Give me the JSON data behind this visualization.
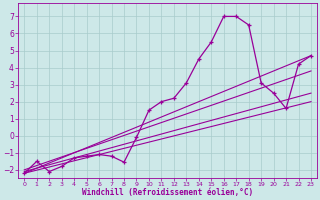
{
  "xlabel": "Windchill (Refroidissement éolien,°C)",
  "bg_color": "#cde8e8",
  "line_color": "#990099",
  "grid_color": "#a8cccc",
  "xlim": [
    -0.5,
    23.5
  ],
  "ylim": [
    -2.5,
    7.8
  ],
  "xticks": [
    0,
    1,
    2,
    3,
    4,
    5,
    6,
    7,
    8,
    9,
    10,
    11,
    12,
    13,
    14,
    15,
    16,
    17,
    18,
    19,
    20,
    21,
    22,
    23
  ],
  "yticks": [
    -2,
    -1,
    0,
    1,
    2,
    3,
    4,
    5,
    6,
    7
  ],
  "main_x": [
    0,
    1,
    2,
    3,
    4,
    5,
    6,
    7,
    8,
    9,
    10,
    11,
    12,
    13,
    14,
    15,
    16,
    17,
    18,
    19,
    20,
    21,
    22,
    23
  ],
  "main_y": [
    -2.2,
    -1.5,
    -2.1,
    -1.8,
    -1.3,
    -1.2,
    -1.1,
    -1.2,
    -1.55,
    -0.1,
    1.5,
    2.0,
    2.2,
    3.1,
    4.5,
    5.5,
    7.0,
    7.0,
    6.5,
    3.1,
    2.5,
    1.6,
    4.2,
    4.7
  ],
  "line1_x": [
    0,
    23
  ],
  "line1_y": [
    -2.2,
    4.7
  ],
  "line2_x": [
    0,
    23
  ],
  "line2_y": [
    -2.0,
    3.8
  ],
  "line3_x": [
    0,
    23
  ],
  "line3_y": [
    -2.1,
    2.5
  ],
  "line4_x": [
    0,
    23
  ],
  "line4_y": [
    -2.2,
    2.0
  ]
}
